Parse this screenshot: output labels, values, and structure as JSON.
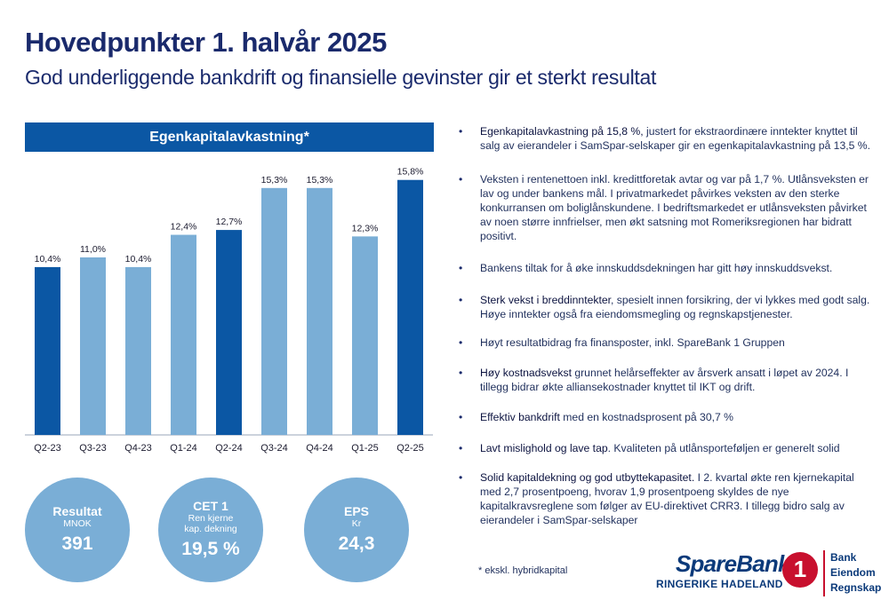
{
  "header": {
    "title": "Hovedpunkter 1. halvår 2025",
    "subtitle": "God underliggende bankdrift og finansielle gevinster gir et sterkt resultat"
  },
  "chart_panel": {
    "header": "Egenkapitalavkastning*"
  },
  "chart_data": {
    "type": "bar",
    "title": "Egenkapitalavkastning*",
    "categories": [
      "Q2-23",
      "Q3-23",
      "Q4-23",
      "Q1-24",
      "Q2-24",
      "Q3-24",
      "Q4-24",
      "Q1-25",
      "Q2-25"
    ],
    "values": [
      10.4,
      11.0,
      10.4,
      12.4,
      12.7,
      15.3,
      15.3,
      12.3,
      15.8
    ],
    "labels": [
      "10,4%",
      "11,0%",
      "10,4%",
      "12,4%",
      "12,7%",
      "15,3%",
      "15,3%",
      "12,3%",
      "15,8%"
    ],
    "highlight": [
      true,
      false,
      false,
      false,
      true,
      false,
      false,
      false,
      true
    ],
    "colors": {
      "highlight": "#0b57a4",
      "normal": "#7aaed6"
    },
    "ylim": [
      0,
      16.5
    ],
    "grid": false
  },
  "kpis": [
    {
      "title": "Resultat",
      "sub1": "MNOK",
      "sub2": "",
      "value": "391"
    },
    {
      "title": "CET 1",
      "sub1": "Ren kjerne",
      "sub2": "kap. dekning",
      "value": "19,5 %"
    },
    {
      "title": "EPS",
      "sub1": "Kr",
      "sub2": "",
      "value": "24,3"
    }
  ],
  "bullets": [
    {
      "strong": "Egenkapitalavkastning på 15,8 %,",
      "text": " justert for ekstraordinære inntekter knyttet til salg av eierandeler i SamSpar-selskaper gir en egenkapitalavkastning på 13,5 %."
    },
    {
      "strong": "",
      "text": "Veksten i rentenettoen inkl. kredittforetak avtar og var på 1,7 %. Utlånsveksten er lav og under bankens mål. I privatmarkedet påvirkes veksten av den sterke konkurransen om boliglånskundene. I bedriftsmarkedet er utlånsveksten påvirket av noen større innfrielser, men økt satsning mot Romeriksregionen har bidratt positivt."
    },
    {
      "strong": "",
      "text": "Bankens tiltak for å øke innskuddsdekningen har gitt høy innskuddsvekst."
    },
    {
      "strong": "Sterk vekst i breddinntekter",
      "text": ", spesielt innen forsikring, der vi lykkes med godt salg. Høye inntekter også fra eiendomsmegling og regnskapstjenester."
    },
    {
      "strong": "",
      "text": "Høyt resultatbidrag fra finansposter, inkl. SpareBank 1 Gruppen"
    },
    {
      "strong": "Høy kostnadsvekst",
      "text": " grunnet helårseffekter av årsverk ansatt i løpet av 2024. I tillegg bidrar økte alliansekostnader knyttet til IKT og drift."
    },
    {
      "strong": "Effektiv bankdrift",
      "text": " med en kostnadsprosent på 30,7 %"
    },
    {
      "strong": "Lavt mislighold og lave tap",
      "text": ". Kvaliteten på utlånsporteføljen er generelt solid"
    },
    {
      "strong": "Solid kapitaldekning og god utbyttekapasitet.",
      "text": " I 2. kvartal økte ren kjernekapital med 2,7 prosentpoeng, hvorav 1,9 prosentpoeng skyldes de nye kapitalkravsreglene som følger av EU-direktivet CRR3. I tillegg bidro salg av eierandeler i SamSpar-selskaper"
    }
  ],
  "bullet_symbol": "•",
  "footnote": "* ekskl. hybridkapital",
  "logo": {
    "name": "SpareBank",
    "mark": "1",
    "sub": "RINGERIKE HADELAND",
    "list": [
      "Bank",
      "Eiendom",
      "Regnskap"
    ]
  }
}
